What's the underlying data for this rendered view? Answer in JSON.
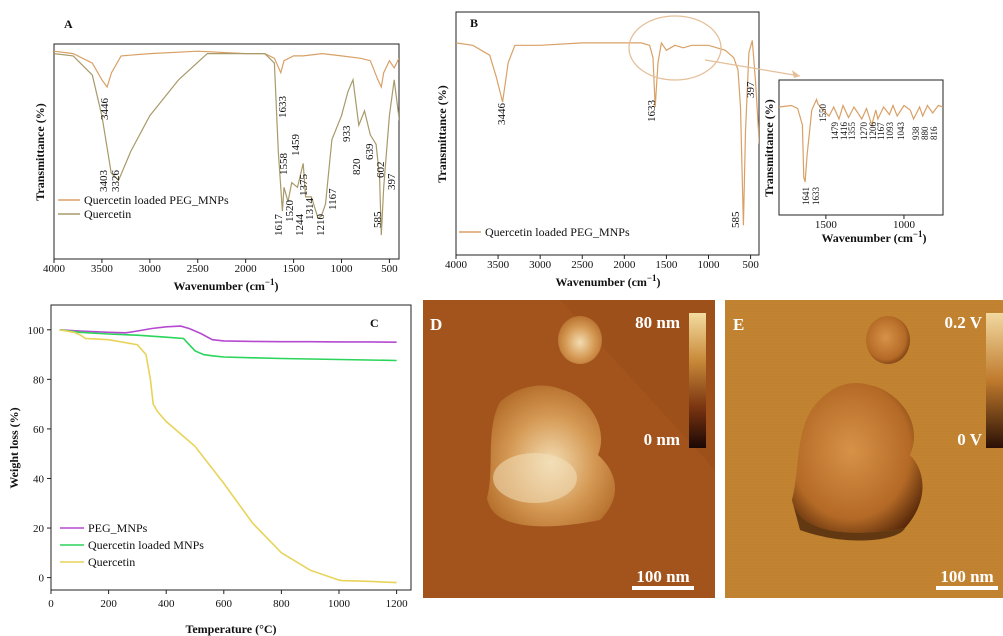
{
  "chart_data": [
    {
      "id": "A",
      "panel_label": "A",
      "type": "line",
      "xlabel": "Wavenumber (cm",
      "xlabel_sup": "−1",
      "xlabel_close": ")",
      "ylabel": "Transmittance (%)",
      "xlim": [
        4000,
        400
      ],
      "x_ticks": [
        4000,
        3500,
        3000,
        2500,
        2000,
        1500,
        1000,
        500
      ],
      "legend": [
        "Quercetin loaded PEG_MNPs",
        "Quercetin"
      ],
      "colors": [
        "#d9a066",
        "#a89a6a"
      ],
      "series": [
        {
          "name": "Quercetin loaded PEG_MNPs",
          "x": [
            4000,
            3800,
            3600,
            3500,
            3446,
            3400,
            3300,
            3000,
            2500,
            2000,
            1800,
            1700,
            1633,
            1600,
            1500,
            1400,
            1200,
            1000,
            800,
            700,
            620,
            585,
            560,
            500,
            450,
            400
          ],
          "y": [
            97,
            96,
            92,
            85,
            82,
            88,
            95,
            96,
            97,
            96,
            96,
            94,
            88,
            93,
            95,
            95,
            96,
            95,
            94,
            93,
            85,
            82,
            88,
            93,
            90,
            94
          ]
        },
        {
          "name": "Quercetin",
          "x": [
            4000,
            3800,
            3600,
            3500,
            3403,
            3326,
            3200,
            3000,
            2700,
            2400,
            2000,
            1800,
            1700,
            1660,
            1617,
            1600,
            1558,
            1520,
            1459,
            1400,
            1375,
            1314,
            1244,
            1210,
            1167,
            1100,
            1000,
            933,
            880,
            820,
            760,
            700,
            639,
            602,
            585,
            560,
            500,
            450,
            397,
            380
          ],
          "y": [
            96,
            95,
            87,
            70,
            46,
            43,
            55,
            70,
            85,
            96,
            96,
            96,
            92,
            55,
            30,
            40,
            34,
            42,
            40,
            50,
            36,
            36,
            27,
            28,
            33,
            60,
            70,
            80,
            85,
            66,
            72,
            62,
            58,
            44,
            20,
            40,
            70,
            85,
            68,
            80
          ]
        }
      ],
      "peak_labels": [
        "3446",
        "3403",
        "3326",
        "1633",
        "1617",
        "1558",
        "1520",
        "1459",
        "1375",
        "1314",
        "1244",
        "1210",
        "1167",
        "933",
        "820",
        "639",
        "602",
        "585",
        "397"
      ]
    },
    {
      "id": "B",
      "panel_label": "B",
      "type": "line",
      "xlabel": "Wavenumber (cm",
      "xlabel_sup": "−1",
      "xlabel_close": ")",
      "ylabel": "Transmittance (%)",
      "xlim": [
        4000,
        400
      ],
      "x_ticks": [
        4000,
        3500,
        3000,
        2500,
        2000,
        1500,
        1000,
        500
      ],
      "legend": [
        "Quercetin loaded PEG_MNPs"
      ],
      "colors": [
        "#d9a066"
      ],
      "series": [
        {
          "name": "Quercetin loaded PEG_MNPs",
          "x": [
            4000,
            3800,
            3600,
            3520,
            3446,
            3380,
            3300,
            3000,
            2500,
            2000,
            1800,
            1700,
            1660,
            1633,
            1600,
            1560,
            1500,
            1400,
            1300,
            1200,
            1000,
            900,
            800,
            700,
            650,
            620,
            585,
            560,
            520,
            480,
            440,
            397,
            380
          ],
          "y": [
            96,
            95,
            91,
            82,
            72,
            88,
            95,
            95,
            96,
            96,
            96,
            95,
            90,
            70,
            88,
            96,
            93,
            95,
            94,
            95,
            95,
            94,
            93,
            90,
            85,
            70,
            22,
            60,
            92,
            97,
            80,
            55,
            70
          ]
        }
      ],
      "peak_labels": [
        "3446",
        "1633",
        "585",
        "397"
      ]
    },
    {
      "id": "B-inset",
      "type": "line",
      "xlabel": "Wavenumber (cm",
      "xlabel_sup": "−1",
      "xlabel_close": ")",
      "ylabel": "Transmittance (%)",
      "xlim": [
        1800,
        750
      ],
      "x_ticks": [
        1500,
        1000
      ],
      "series": [
        {
          "name": "Quercetin loaded PEG_MNPs",
          "x": [
            1800,
            1720,
            1680,
            1650,
            1641,
            1633,
            1620,
            1590,
            1560,
            1550,
            1520,
            1479,
            1450,
            1416,
            1390,
            1355,
            1320,
            1270,
            1240,
            1206,
            1180,
            1167,
            1130,
            1093,
            1070,
            1043,
            1000,
            960,
            938,
            900,
            880,
            850,
            816,
            780,
            750
          ],
          "y": [
            92,
            93,
            91,
            80,
            45,
            42,
            60,
            90,
            97,
            94,
            90,
            86,
            92,
            84,
            93,
            85,
            92,
            84,
            91,
            80,
            90,
            84,
            92,
            87,
            93,
            86,
            93,
            90,
            84,
            92,
            86,
            93,
            88,
            93,
            92
          ]
        }
      ],
      "peak_labels": [
        "1641",
        "1633",
        "1550",
        "1479",
        "1416",
        "1355",
        "1270",
        "1206",
        "1167",
        "1093",
        "1043",
        "938",
        "880",
        "816"
      ]
    },
    {
      "id": "C",
      "panel_label": "C",
      "type": "line",
      "xlabel": "Temperature (°C)",
      "ylabel": "Weight loss (%)",
      "xlim": [
        0,
        1250
      ],
      "ylim": [
        -5,
        110
      ],
      "x_ticks": [
        0,
        200,
        400,
        600,
        800,
        1000,
        1200
      ],
      "y_ticks": [
        0,
        20,
        40,
        60,
        80,
        100
      ],
      "legend": [
        "PEG_MNPs",
        "Quercetin loaded MNPs",
        "Quercetin"
      ],
      "colors": [
        "#b54ad0",
        "#2bd45a",
        "#e8d35a"
      ],
      "series": [
        {
          "name": "PEG_MNPs",
          "x": [
            30,
            100,
            200,
            260,
            300,
            350,
            400,
            450,
            480,
            520,
            560,
            600,
            700,
            800,
            900,
            1000,
            1100,
            1200
          ],
          "y": [
            100,
            99.5,
            99,
            98.8,
            99.5,
            100.5,
            101.2,
            101.5,
            100.5,
            98.5,
            96,
            95.5,
            95.3,
            95.2,
            95.2,
            95.1,
            95.1,
            95
          ]
        },
        {
          "name": "Quercetin loaded MNPs",
          "x": [
            30,
            100,
            200,
            300,
            400,
            460,
            480,
            500,
            530,
            560,
            600,
            700,
            800,
            900,
            1000,
            1100,
            1200
          ],
          "y": [
            100,
            99,
            98.3,
            97.8,
            97,
            96.5,
            94,
            91.5,
            90,
            89.5,
            89,
            88.7,
            88.4,
            88.2,
            88,
            87.8,
            87.6
          ]
        },
        {
          "name": "Quercetin",
          "x": [
            30,
            80,
            100,
            120,
            200,
            300,
            330,
            345,
            355,
            370,
            400,
            500,
            600,
            700,
            800,
            900,
            1000,
            1010,
            1100,
            1200
          ],
          "y": [
            100,
            99,
            98,
            96.5,
            96,
            94,
            90,
            80,
            70,
            67,
            63,
            53,
            38,
            22,
            10,
            3,
            -1,
            -1.2,
            -1.5,
            -2
          ]
        }
      ]
    }
  ],
  "afm": {
    "height": {
      "letter": "D",
      "scale_max": "80 nm",
      "scale_min": "0 nm",
      "scalebar": "100 nm"
    },
    "amplitude": {
      "letter": "E",
      "scale_max": "0.2 V",
      "scale_min": "0 V",
      "scalebar": "100 nm"
    }
  }
}
